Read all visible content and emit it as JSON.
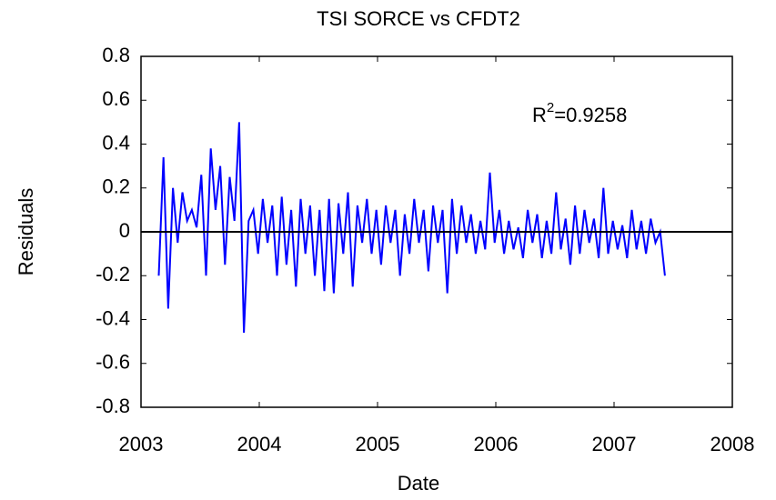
{
  "chart_data": {
    "type": "line",
    "title": "TSI SORCE vs CFDT2",
    "xlabel": "Date",
    "ylabel": "Residuals",
    "annotation": {
      "base": "R",
      "sup": "2",
      "rest": "=0.9258"
    },
    "reference_line": 0,
    "xlim": [
      2003,
      2008
    ],
    "xticks": [
      2003,
      2004,
      2005,
      2006,
      2007,
      2008
    ],
    "ylim": [
      -0.8,
      0.8
    ],
    "yticks": [
      {
        "value": -0.8,
        "label": "-0.8"
      },
      {
        "value": -0.6,
        "label": "-0.6"
      },
      {
        "value": -0.4,
        "label": "-0.4"
      },
      {
        "value": -0.2,
        "label": "-0.2"
      },
      0,
      {
        "value": 0.2,
        "label": "0.2"
      },
      {
        "value": 0.4,
        "label": "0.4"
      },
      {
        "value": 0.6,
        "label": "0.6"
      },
      {
        "value": 0.8,
        "label": "0.8"
      }
    ],
    "series": [
      {
        "color": "#0000ff",
        "x": [
          2003.15,
          2003.19,
          2003.23,
          2003.27,
          2003.31,
          2003.35,
          2003.39,
          2003.43,
          2003.47,
          2003.51,
          2003.55,
          2003.59,
          2003.63,
          2003.67,
          2003.71,
          2003.75,
          2003.79,
          2003.83,
          2003.87,
          2003.91,
          2003.95,
          2003.99,
          2004.03,
          2004.07,
          2004.11,
          2004.15,
          2004.19,
          2004.23,
          2004.27,
          2004.31,
          2004.35,
          2004.39,
          2004.43,
          2004.47,
          2004.51,
          2004.55,
          2004.59,
          2004.63,
          2004.67,
          2004.71,
          2004.75,
          2004.79,
          2004.83,
          2004.87,
          2004.91,
          2004.95,
          2004.99,
          2005.03,
          2005.07,
          2005.11,
          2005.15,
          2005.19,
          2005.23,
          2005.27,
          2005.31,
          2005.35,
          2005.39,
          2005.43,
          2005.47,
          2005.51,
          2005.55,
          2005.59,
          2005.63,
          2005.67,
          2005.71,
          2005.75,
          2005.79,
          2005.83,
          2005.87,
          2005.91,
          2005.95,
          2005.99,
          2006.03,
          2006.07,
          2006.11,
          2006.15,
          2006.19,
          2006.23,
          2006.27,
          2006.31,
          2006.35,
          2006.39,
          2006.43,
          2006.47,
          2006.51,
          2006.55,
          2006.59,
          2006.63,
          2006.67,
          2006.71,
          2006.75,
          2006.79,
          2006.83,
          2006.87,
          2006.91,
          2006.95,
          2006.99,
          2007.03,
          2007.07,
          2007.11,
          2007.15,
          2007.19,
          2007.23,
          2007.27,
          2007.31,
          2007.35,
          2007.39,
          2007.43
        ],
        "values": [
          -0.2,
          0.34,
          -0.35,
          0.2,
          -0.05,
          0.18,
          0.05,
          0.1,
          0.02,
          0.26,
          -0.2,
          0.38,
          0.1,
          0.3,
          -0.15,
          0.25,
          0.05,
          0.5,
          -0.46,
          0.05,
          0.1,
          -0.1,
          0.15,
          -0.05,
          0.12,
          -0.2,
          0.16,
          -0.15,
          0.1,
          -0.25,
          0.15,
          -0.1,
          0.12,
          -0.2,
          0.1,
          -0.27,
          0.15,
          -0.28,
          0.13,
          -0.1,
          0.18,
          -0.25,
          0.12,
          -0.05,
          0.15,
          -0.1,
          0.1,
          -0.15,
          0.12,
          -0.05,
          0.1,
          -0.2,
          0.08,
          -0.1,
          0.15,
          -0.05,
          0.1,
          -0.18,
          0.12,
          -0.05,
          0.1,
          -0.28,
          0.15,
          -0.1,
          0.12,
          -0.05,
          0.08,
          -0.1,
          0.05,
          -0.08,
          0.27,
          -0.05,
          0.1,
          -0.1,
          0.05,
          -0.08,
          0.02,
          -0.12,
          0.1,
          -0.05,
          0.08,
          -0.12,
          0.05,
          -0.1,
          0.18,
          -0.08,
          0.06,
          -0.15,
          0.12,
          -0.1,
          0.1,
          -0.05,
          0.06,
          -0.12,
          0.2,
          -0.1,
          0.05,
          -0.08,
          0.03,
          -0.12,
          0.1,
          -0.08,
          0.05,
          -0.1,
          0.06,
          -0.05,
          0,
          -0.2
        ]
      }
    ]
  }
}
